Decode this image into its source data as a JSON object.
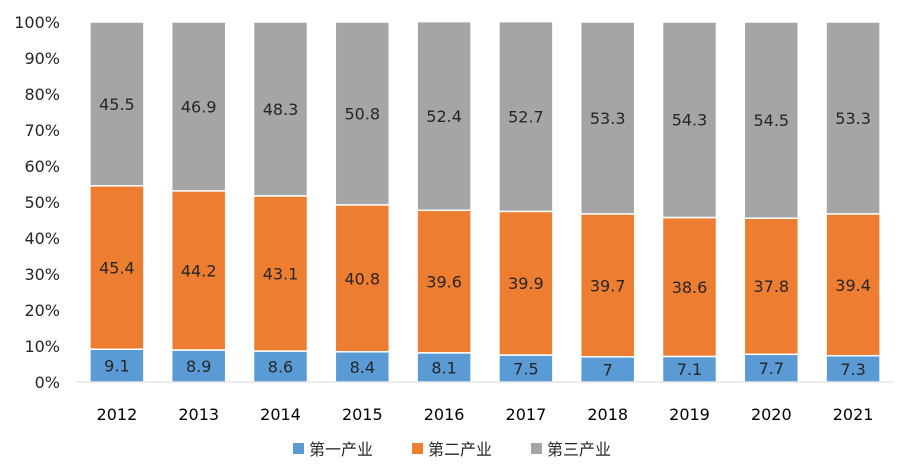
{
  "chart_data": {
    "type": "bar",
    "stacked": true,
    "percent": true,
    "title": "",
    "xlabel": "",
    "ylabel": "",
    "ylim": [
      0,
      100
    ],
    "y_ticks": [
      "0%",
      "10%",
      "20%",
      "30%",
      "40%",
      "50%",
      "60%",
      "70%",
      "80%",
      "90%",
      "100%"
    ],
    "grid": false,
    "legend_position": "bottom",
    "categories": [
      "2012",
      "2013",
      "2014",
      "2015",
      "2016",
      "2017",
      "2018",
      "2019",
      "2020",
      "2021"
    ],
    "series": [
      {
        "name": "第一产业",
        "color": "#5B9BD5",
        "values": [
          9.1,
          8.9,
          8.6,
          8.4,
          8.1,
          7.5,
          7,
          7.1,
          7.7,
          7.3
        ]
      },
      {
        "name": "第二产业",
        "color": "#ED7D31",
        "values": [
          45.4,
          44.2,
          43.1,
          40.8,
          39.6,
          39.9,
          39.7,
          38.6,
          37.8,
          39.4
        ]
      },
      {
        "name": "第三产业",
        "color": "#A5A5A5",
        "values": [
          45.5,
          46.9,
          48.3,
          50.8,
          52.4,
          52.7,
          53.3,
          54.3,
          54.5,
          53.3
        ]
      }
    ]
  }
}
